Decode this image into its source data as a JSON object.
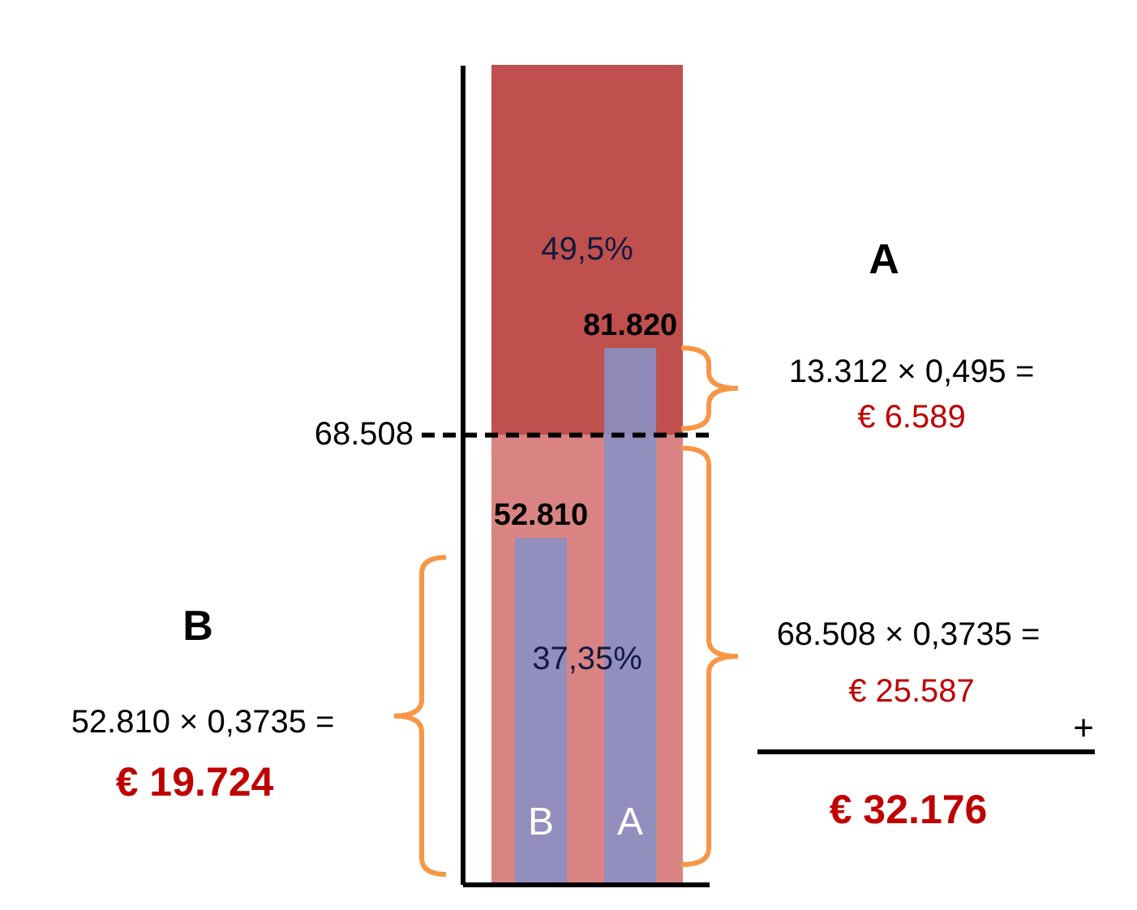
{
  "chart_data": {
    "type": "bar",
    "categories": [
      "B",
      "A"
    ],
    "values": [
      52810,
      81820
    ],
    "color": "#8a8fc4",
    "value_labels": [
      "52.810",
      "81.820"
    ],
    "ylim": [
      0,
      125000
    ],
    "tick_labels": "x",
    "bands": [
      {
        "axis": "y",
        "from": 0,
        "to": 68508,
        "label": "37,35%",
        "color": "#d98483"
      },
      {
        "axis": "y",
        "from": 68508,
        "to": 125000,
        "label": "49,5%",
        "color": "#c0504d"
      }
    ],
    "ref_lines": [
      {
        "axis": "y",
        "value": 68508,
        "label": "68.508",
        "line_style": "dashed"
      }
    ],
    "annotations": [
      "A",
      "13.312 × 0,495 =",
      "€ 6.589",
      "68.508 × 0,3735 =",
      "€ 25.587",
      "+",
      "€ 32.176",
      "B",
      "52.810 × 0,3735 =",
      "€ 19.724"
    ]
  }
}
